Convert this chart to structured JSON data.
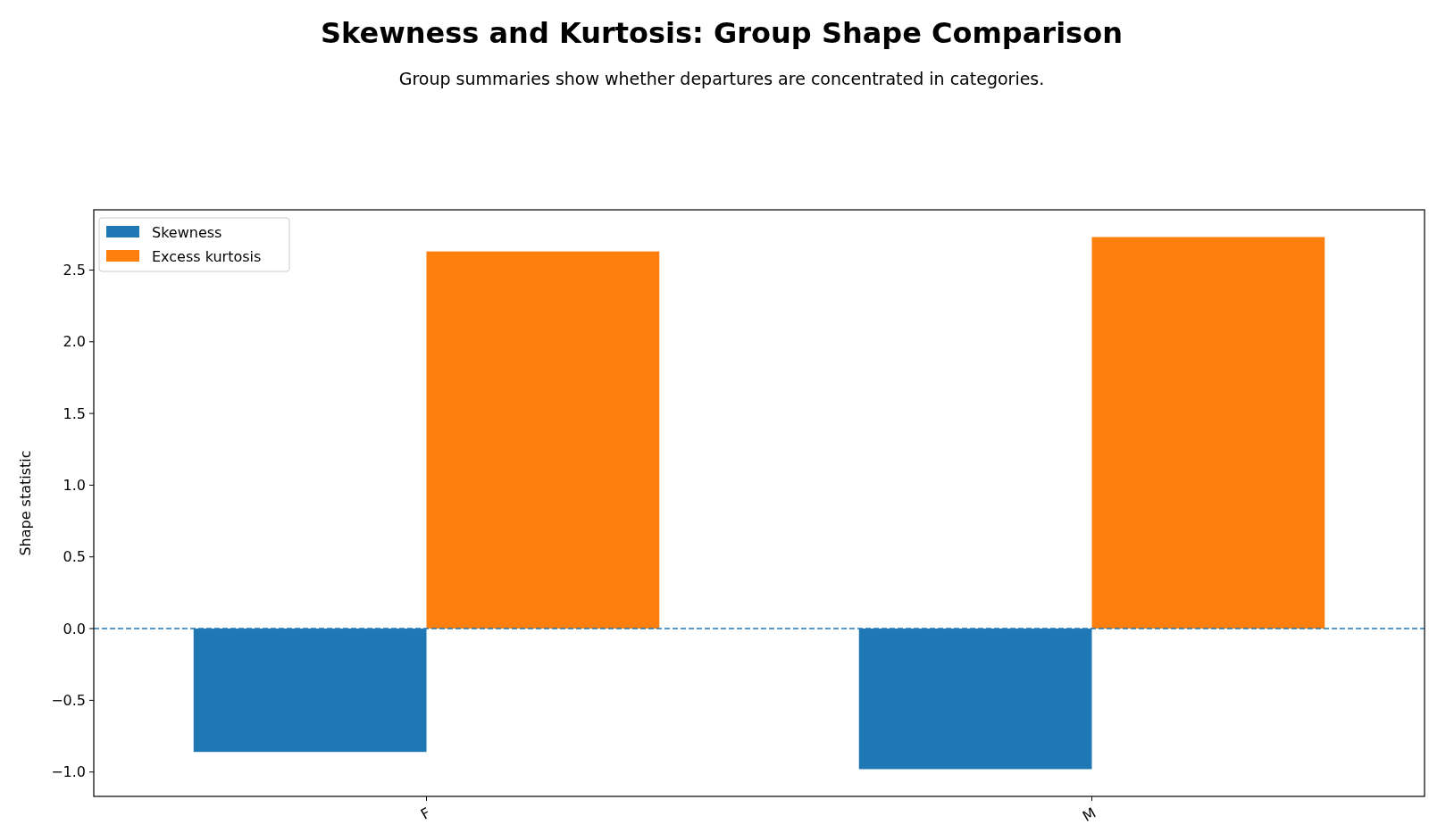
{
  "chart_data": {
    "type": "bar",
    "title": "Skewness and Kurtosis: Group Shape Comparison",
    "subtitle": "Group summaries show whether departures are concentrated in categories.",
    "ylabel": "Shape statistic",
    "categories": [
      "F",
      "M"
    ],
    "series": [
      {
        "name": "Skewness",
        "color": "#1f77b4",
        "values": [
          -0.86,
          -0.98
        ]
      },
      {
        "name": "Excess kurtosis",
        "color": "#ff7f0e",
        "values": [
          2.63,
          2.73
        ]
      }
    ],
    "ylim": [
      -1.17,
      2.92
    ],
    "yticks": [
      {
        "value": -1,
        "label": "−1.0"
      },
      {
        "value": -0.5,
        "label": "−0.5"
      },
      {
        "value": 0,
        "label": "0.0"
      },
      {
        "value": 0.5,
        "label": "0.5"
      },
      {
        "value": 1,
        "label": "1.0"
      },
      {
        "value": 1.5,
        "label": "1.5"
      },
      {
        "value": 2,
        "label": "2.0"
      },
      {
        "value": 2.5,
        "label": "2.5"
      }
    ],
    "ref_lines": [
      {
        "axis": "y",
        "value": 0,
        "color": "#1f77b4",
        "line_style": "dashed"
      }
    ],
    "legend": "top left",
    "grid": false
  }
}
